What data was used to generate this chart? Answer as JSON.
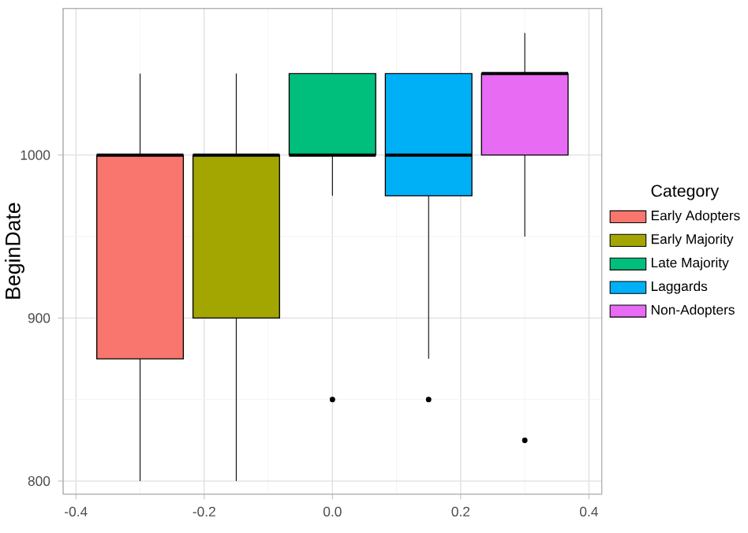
{
  "chart_data": {
    "type": "box",
    "ylabel": "BeginDate",
    "legend_title": "Category",
    "legend": "right",
    "grid": true,
    "marker": "circle",
    "xlim": [
      -0.42,
      0.42
    ],
    "xticks": [
      -0.4,
      -0.2,
      {
        "value": 0,
        "label": "0.0"
      },
      0.2,
      0.4
    ],
    "ylim": [
      792,
      1090
    ],
    "yticks": [
      800,
      900,
      1000
    ],
    "series": [
      {
        "name": "Early Adopters",
        "color": "#f8766d",
        "x": [
          -0.3
        ],
        "boxes": [
          {
            "low": 800,
            "q1": 875,
            "median": 1000,
            "q3": 1000,
            "high": 1050
          }
        ]
      },
      {
        "name": "Early Majority",
        "color": "#a3a500",
        "x": [
          -0.15
        ],
        "boxes": [
          {
            "low": 800,
            "q1": 900,
            "median": 1000,
            "q3": 1000,
            "high": 1050
          }
        ]
      },
      {
        "name": "Late Majority",
        "color": "#00bf7d",
        "x": [
          0
        ],
        "boxes": [
          {
            "low": 975,
            "q1": 1000,
            "median": 1000,
            "q3": 1050,
            "high": 1050,
            "outliers": [
              850
            ]
          }
        ]
      },
      {
        "name": "Laggards",
        "color": "#00b0f6",
        "x": [
          0.15
        ],
        "boxes": [
          {
            "low": 875,
            "q1": 975,
            "median": 1000,
            "q3": 1050,
            "high": 1050,
            "outliers": [
              850
            ]
          }
        ]
      },
      {
        "name": "Non-Adopters",
        "color": "#e76bf3",
        "x": [
          0.3
        ],
        "boxes": [
          {
            "low": 950,
            "q1": 1000,
            "median": 1050,
            "q3": 1050,
            "high": 1075,
            "outliers": [
              825
            ]
          }
        ]
      }
    ]
  }
}
